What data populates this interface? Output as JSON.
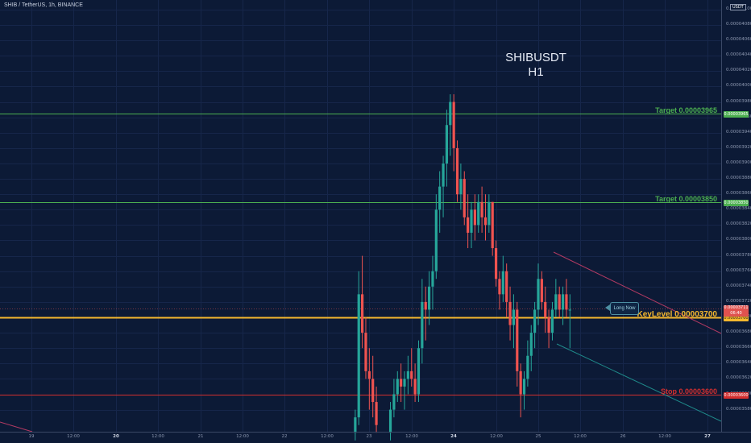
{
  "header": {
    "symbol_line": "SHIB / TetherUS, 1h, BINANCE"
  },
  "chart_data": {
    "type": "candlestick",
    "title": "SHIBUSDT",
    "subtitle": "H1",
    "y_axis": {
      "unit": "USDT",
      "ylim": [
        3.555e-05,
        4.105e-05
      ],
      "ticks": [
        "0.00003580",
        "0.00003600",
        "0.00003620",
        "0.00003640",
        "0.00003660",
        "0.00003680",
        "0.00003700",
        "0.00003720",
        "0.00003740",
        "0.00003760",
        "0.00003780",
        "0.00003800",
        "0.00003820",
        "0.00003840",
        "0.00003860",
        "0.00003880",
        "0.00003900",
        "0.00003920",
        "0.00003940",
        "0.00003960",
        "0.00003980",
        "0.00004000",
        "0.00004020",
        "0.00004040",
        "0.00004060",
        "0.00004080",
        "0.00004100"
      ]
    },
    "x_axis": {
      "ticks": [
        {
          "label": "19",
          "hour": 0,
          "bold": false
        },
        {
          "label": "12:00",
          "hour": 12,
          "bold": false
        },
        {
          "label": "20",
          "hour": 24,
          "bold": true
        },
        {
          "label": "12:00",
          "hour": 36,
          "bold": false
        },
        {
          "label": "21",
          "hour": 48,
          "bold": false
        },
        {
          "label": "12:00",
          "hour": 60,
          "bold": false
        },
        {
          "label": "22",
          "hour": 72,
          "bold": false
        },
        {
          "label": "12:00",
          "hour": 84,
          "bold": false
        },
        {
          "label": "23",
          "hour": 96,
          "bold": false
        },
        {
          "label": "12:00",
          "hour": 108,
          "bold": false
        },
        {
          "label": "24",
          "hour": 120,
          "bold": true
        },
        {
          "label": "12:00",
          "hour": 132,
          "bold": false
        },
        {
          "label": "25",
          "hour": 144,
          "bold": false
        },
        {
          "label": "12:00",
          "hour": 156,
          "bold": false
        },
        {
          "label": "26",
          "hour": 168,
          "bold": false
        },
        {
          "label": "12:00",
          "hour": 180,
          "bold": false
        },
        {
          "label": "27",
          "hour": 192,
          "bold": true
        }
      ]
    },
    "levels": [
      {
        "name": "Target 0.00003965",
        "value": 3.965e-05,
        "color": "#4caf50",
        "tag": "0.00003965"
      },
      {
        "name": "Target 0.00003850",
        "value": 3.85e-05,
        "color": "#4caf50",
        "tag": "0.00003850"
      },
      {
        "name": "KeyLevel 0.00003700",
        "value": 3.7e-05,
        "color": "#f5b82e",
        "tag": "0.00003700"
      },
      {
        "name": "Stop 0.00003600",
        "value": 3.6e-05,
        "color": "#d32f2f",
        "tag": "0.00003600"
      }
    ],
    "current_price": {
      "value": 3.711e-05,
      "tag": "0.00003711",
      "countdown": "06:40"
    },
    "candles": [
      {
        "h": 92,
        "o": 3.55e-05,
        "hi": 3.58e-05,
        "l": 3.54e-05,
        "c": 3.57e-05
      },
      {
        "h": 93,
        "o": 3.57e-05,
        "hi": 3.76e-05,
        "l": 3.56e-05,
        "c": 3.73e-05
      },
      {
        "h": 94,
        "o": 3.73e-05,
        "hi": 3.78e-05,
        "l": 3.66e-05,
        "c": 3.68e-05
      },
      {
        "h": 95,
        "o": 3.68e-05,
        "hi": 3.7e-05,
        "l": 3.62e-05,
        "c": 3.63e-05
      },
      {
        "h": 96,
        "o": 3.63e-05,
        "hi": 3.66e-05,
        "l": 3.58e-05,
        "c": 3.62e-05
      },
      {
        "h": 97,
        "o": 3.62e-05,
        "hi": 3.65e-05,
        "l": 3.57e-05,
        "c": 3.59e-05
      },
      {
        "h": 98,
        "o": 3.59e-05,
        "hi": 3.61e-05,
        "l": 3.55e-05,
        "c": 3.56e-05
      },
      {
        "h": 102,
        "o": 3.55e-05,
        "hi": 3.59e-05,
        "l": 3.54e-05,
        "c": 3.58e-05
      },
      {
        "h": 103,
        "o": 3.58e-05,
        "hi": 3.62e-05,
        "l": 3.57e-05,
        "c": 3.6e-05
      },
      {
        "h": 104,
        "o": 3.6e-05,
        "hi": 3.63e-05,
        "l": 3.59e-05,
        "c": 3.62e-05
      },
      {
        "h": 105,
        "o": 3.62e-05,
        "hi": 3.64e-05,
        "l": 3.59e-05,
        "c": 3.61e-05
      },
      {
        "h": 106,
        "o": 3.61e-05,
        "hi": 3.63e-05,
        "l": 3.58e-05,
        "c": 3.62e-05
      },
      {
        "h": 107,
        "o": 3.62e-05,
        "hi": 3.65e-05,
        "l": 3.6e-05,
        "c": 3.63e-05
      },
      {
        "h": 108,
        "o": 3.63e-05,
        "hi": 3.66e-05,
        "l": 3.61e-05,
        "c": 3.62e-05
      },
      {
        "h": 109,
        "o": 3.62e-05,
        "hi": 3.64e-05,
        "l": 3.59e-05,
        "c": 3.6e-05
      },
      {
        "h": 110,
        "o": 3.6e-05,
        "hi": 3.67e-05,
        "l": 3.59e-05,
        "c": 3.66e-05
      },
      {
        "h": 111,
        "o": 3.66e-05,
        "hi": 3.75e-05,
        "l": 3.64e-05,
        "c": 3.72e-05
      },
      {
        "h": 112,
        "o": 3.72e-05,
        "hi": 3.74e-05,
        "l": 3.67e-05,
        "c": 3.71e-05
      },
      {
        "h": 113,
        "o": 3.71e-05,
        "hi": 3.76e-05,
        "l": 3.69e-05,
        "c": 3.74e-05
      },
      {
        "h": 114,
        "o": 3.74e-05,
        "hi": 3.78e-05,
        "l": 3.71e-05,
        "c": 3.76e-05
      },
      {
        "h": 115,
        "o": 3.76e-05,
        "hi": 3.86e-05,
        "l": 3.75e-05,
        "c": 3.84e-05
      },
      {
        "h": 116,
        "o": 3.84e-05,
        "hi": 3.89e-05,
        "l": 3.81e-05,
        "c": 3.87e-05
      },
      {
        "h": 117,
        "o": 3.87e-05,
        "hi": 3.91e-05,
        "l": 3.83e-05,
        "c": 3.9e-05
      },
      {
        "h": 118,
        "o": 3.9e-05,
        "hi": 3.97e-05,
        "l": 3.87e-05,
        "c": 3.95e-05
      },
      {
        "h": 119,
        "o": 3.95e-05,
        "hi": 3.99e-05,
        "l": 3.91e-05,
        "c": 3.98e-05
      },
      {
        "h": 120,
        "o": 3.98e-05,
        "hi": 3.99e-05,
        "l": 3.89e-05,
        "c": 3.92e-05
      },
      {
        "h": 121,
        "o": 3.92e-05,
        "hi": 3.93e-05,
        "l": 3.85e-05,
        "c": 3.86e-05
      },
      {
        "h": 122,
        "o": 3.86e-05,
        "hi": 3.9e-05,
        "l": 3.84e-05,
        "c": 3.88e-05
      },
      {
        "h": 123,
        "o": 3.88e-05,
        "hi": 3.89e-05,
        "l": 3.82e-05,
        "c": 3.83e-05
      },
      {
        "h": 124,
        "o": 3.83e-05,
        "hi": 3.86e-05,
        "l": 3.79e-05,
        "c": 3.81e-05
      },
      {
        "h": 125,
        "o": 3.81e-05,
        "hi": 3.85e-05,
        "l": 3.79e-05,
        "c": 3.84e-05
      },
      {
        "h": 126,
        "o": 3.84e-05,
        "hi": 3.86e-05,
        "l": 3.8e-05,
        "c": 3.82e-05
      },
      {
        "h": 127,
        "o": 3.82e-05,
        "hi": 3.86e-05,
        "l": 3.81e-05,
        "c": 3.85e-05
      },
      {
        "h": 128,
        "o": 3.85e-05,
        "hi": 3.87e-05,
        "l": 3.81e-05,
        "c": 3.83e-05
      },
      {
        "h": 129,
        "o": 3.83e-05,
        "hi": 3.86e-05,
        "l": 3.8e-05,
        "c": 3.82e-05
      },
      {
        "h": 130,
        "o": 3.82e-05,
        "hi": 3.86e-05,
        "l": 3.81e-05,
        "c": 3.85e-05
      },
      {
        "h": 131,
        "o": 3.85e-05,
        "hi": 3.85e-05,
        "l": 3.78e-05,
        "c": 3.79e-05
      },
      {
        "h": 132,
        "o": 3.79e-05,
        "hi": 3.8e-05,
        "l": 3.74e-05,
        "c": 3.75e-05
      },
      {
        "h": 133,
        "o": 3.75e-05,
        "hi": 3.76e-05,
        "l": 3.71e-05,
        "c": 3.73e-05
      },
      {
        "h": 134,
        "o": 3.73e-05,
        "hi": 3.78e-05,
        "l": 3.72e-05,
        "c": 3.76e-05
      },
      {
        "h": 135,
        "o": 3.76e-05,
        "hi": 3.77e-05,
        "l": 3.7e-05,
        "c": 3.72e-05
      },
      {
        "h": 136,
        "o": 3.72e-05,
        "hi": 3.74e-05,
        "l": 3.67e-05,
        "c": 3.69e-05
      },
      {
        "h": 137,
        "o": 3.69e-05,
        "hi": 3.73e-05,
        "l": 3.66e-05,
        "c": 3.71e-05
      },
      {
        "h": 138,
        "o": 3.71e-05,
        "hi": 3.72e-05,
        "l": 3.61e-05,
        "c": 3.63e-05
      },
      {
        "h": 139,
        "o": 3.63e-05,
        "hi": 3.64e-05,
        "l": 3.57e-05,
        "c": 3.6e-05
      },
      {
        "h": 140,
        "o": 3.6e-05,
        "hi": 3.63e-05,
        "l": 3.58e-05,
        "c": 3.62e-05
      },
      {
        "h": 141,
        "o": 3.62e-05,
        "hi": 3.67e-05,
        "l": 3.61e-05,
        "c": 3.65e-05
      },
      {
        "h": 142,
        "o": 3.65e-05,
        "hi": 3.69e-05,
        "l": 3.63e-05,
        "c": 3.68e-05
      },
      {
        "h": 143,
        "o": 3.68e-05,
        "hi": 3.72e-05,
        "l": 3.66e-05,
        "c": 3.71e-05
      },
      {
        "h": 144,
        "o": 3.71e-05,
        "hi": 3.77e-05,
        "l": 3.69e-05,
        "c": 3.75e-05
      },
      {
        "h": 145,
        "o": 3.75e-05,
        "hi": 3.76e-05,
        "l": 3.71e-05,
        "c": 3.72e-05
      },
      {
        "h": 146,
        "o": 3.72e-05,
        "hi": 3.74e-05,
        "l": 3.68e-05,
        "c": 3.7e-05
      },
      {
        "h": 147,
        "o": 3.7e-05,
        "hi": 3.71e-05,
        "l": 3.66e-05,
        "c": 3.68e-05
      },
      {
        "h": 148,
        "o": 3.68e-05,
        "hi": 3.72e-05,
        "l": 3.67e-05,
        "c": 3.71e-05
      },
      {
        "h": 149,
        "o": 3.71e-05,
        "hi": 3.75e-05,
        "l": 3.7e-05,
        "c": 3.73e-05
      },
      {
        "h": 150,
        "o": 3.73e-05,
        "hi": 3.74e-05,
        "l": 3.7e-05,
        "c": 3.71e-05
      },
      {
        "h": 151,
        "o": 3.71e-05,
        "hi": 3.74e-05,
        "l": 3.69e-05,
        "c": 3.73e-05
      },
      {
        "h": 152,
        "o": 3.73e-05,
        "hi": 3.75e-05,
        "l": 3.7e-05,
        "c": 3.71e-05
      },
      {
        "h": 153,
        "o": 3.71e-05,
        "hi": 3.73e-05,
        "l": 3.66e-05,
        "c": 3.71e-05
      }
    ],
    "annotations": [
      {
        "type": "callout",
        "text": "Long Now"
      }
    ]
  }
}
